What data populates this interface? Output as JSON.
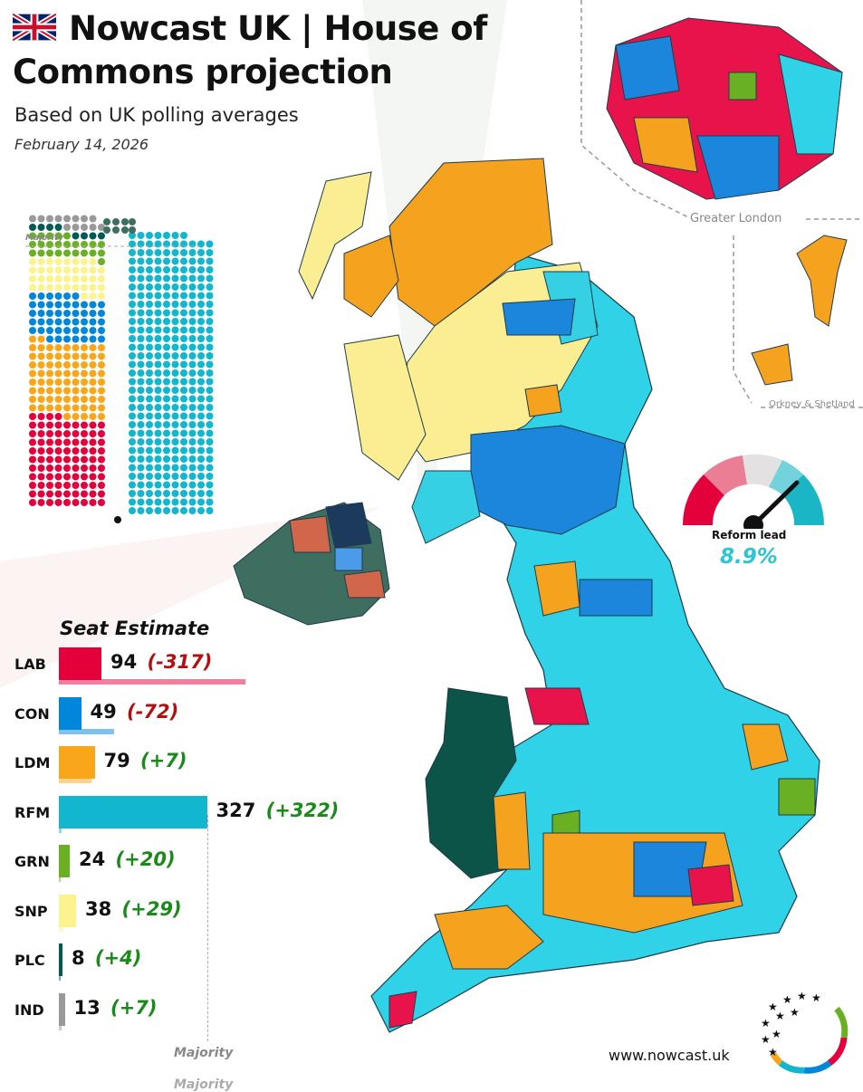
{
  "header": {
    "title_line1": "Nowcast UK | House of",
    "title_line2": "Commons projection",
    "subtitle": "Based on UK polling averages",
    "date": "February 14, 2026"
  },
  "parliament": {
    "majority_label": "Majority"
  },
  "map": {
    "london_label": "Greater London",
    "orkney_label": "Orkney & Shetland"
  },
  "gauge": {
    "label": "Reform lead",
    "value_text": "8.9%",
    "value": 8.9
  },
  "footer": {
    "website": "www.nowcast.uk",
    "majority_label": "Majority",
    "majority_ghost": "Majority"
  },
  "colors": {
    "LAB": "#e4003b",
    "CON": "#0087dc",
    "LDM": "#faa61a",
    "RFM": "#12b6cf",
    "GRN": "#6ab023",
    "SNP": "#fdf38e",
    "PLC": "#005b54",
    "IND": "#999999"
  },
  "chart_data": {
    "type": "bar",
    "title": "Seat Estimate",
    "categories": [
      "LAB",
      "CON",
      "LDM",
      "RFM",
      "GRN",
      "SNP",
      "PLC",
      "IND"
    ],
    "values": [
      94,
      49,
      79,
      327,
      24,
      38,
      8,
      13
    ],
    "changes": [
      "(-317)",
      "(-72)",
      "(+7)",
      "(+322)",
      "(+20)",
      "(+29)",
      "(+4)",
      "(+7)"
    ],
    "previous": [
      411,
      121,
      72,
      5,
      4,
      9,
      4,
      6
    ],
    "majority": 326,
    "xlabel": "",
    "ylabel": ""
  }
}
